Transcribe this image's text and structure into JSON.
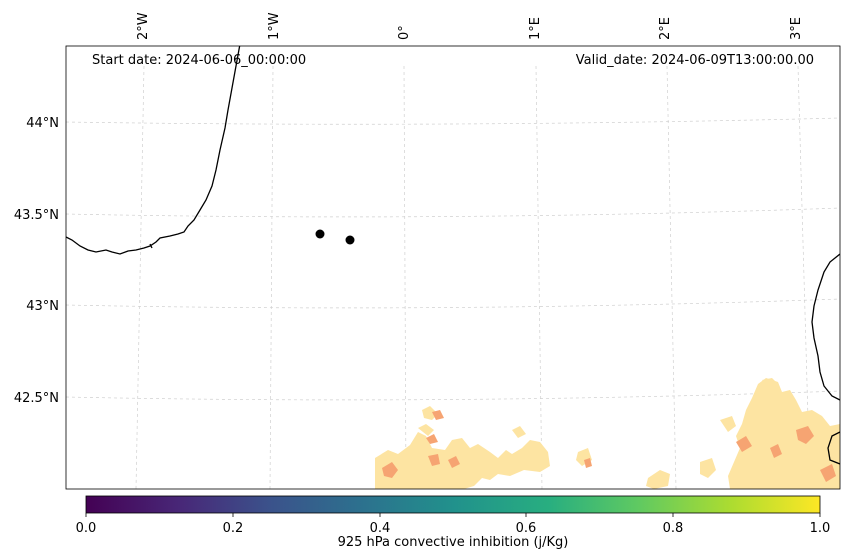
{
  "header": {
    "start_date": "Start date: 2024-06-06_00:00:00",
    "valid_date": "Valid_date: 2024-06-09T13:00:00.00"
  },
  "axes": {
    "lon_labels": [
      "2°W",
      "1°W",
      "0°",
      "1°E",
      "2°E",
      "3°E"
    ],
    "lat_labels": [
      "44°N",
      "43.5°N",
      "43°N",
      "42.5°N"
    ]
  },
  "colorbar": {
    "label": "925 hPa convective inhibition (j/Kg)",
    "ticks": [
      "0.0",
      "0.2",
      "0.4",
      "0.6",
      "0.8",
      "1.0"
    ],
    "range": [
      0,
      1
    ],
    "colormap": "viridis",
    "colors": [
      "#440154",
      "#3b528b",
      "#21918c",
      "#5ec962",
      "#fde725"
    ]
  },
  "field_colors": {
    "low": "#fde4a2",
    "high": "#f6a472"
  },
  "markers": {
    "count": 2,
    "color": "#000000"
  }
}
